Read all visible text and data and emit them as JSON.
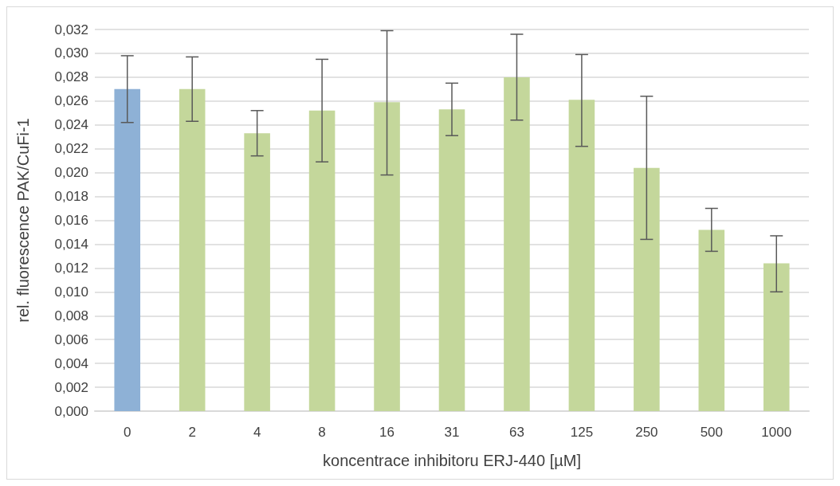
{
  "chart_data": {
    "type": "bar",
    "xlabel": "koncentrace inhibitoru ERJ-440 [µM]",
    "ylabel": "rel. fluorescence PAK/CuFi-1",
    "categories": [
      "0",
      "2",
      "4",
      "8",
      "16",
      "31",
      "63",
      "125",
      "250",
      "500",
      "1000"
    ],
    "values": [
      0.027,
      0.027,
      0.0233,
      0.0252,
      0.0259,
      0.0253,
      0.028,
      0.0261,
      0.0204,
      0.0152,
      0.0124
    ],
    "colors": [
      "#8eb1d6",
      "#c4d79b",
      "#c4d79b",
      "#c4d79b",
      "#c4d79b",
      "#c4d79b",
      "#c4d79b",
      "#c4d79b",
      "#c4d79b",
      "#c4d79b",
      "#c4d79b"
    ],
    "errors": [
      [
        0.0242,
        0.0298
      ],
      [
        0.0243,
        0.0297
      ],
      [
        0.0214,
        0.0252
      ],
      [
        0.0209,
        0.0295
      ],
      [
        0.0198,
        0.0319
      ],
      [
        0.0231,
        0.0275
      ],
      [
        0.0244,
        0.0316
      ],
      [
        0.0222,
        0.0299
      ],
      [
        0.0144,
        0.0264
      ],
      [
        0.0134,
        0.017
      ],
      [
        0.01,
        0.0147
      ]
    ],
    "ylim": [
      0,
      0.032
    ],
    "yticks": [
      {
        "value": 0,
        "label": "0,000"
      },
      {
        "value": 0.002,
        "label": "0,002"
      },
      {
        "value": 0.004,
        "label": "0,004"
      },
      {
        "value": 0.006,
        "label": "0,006"
      },
      {
        "value": 0.008,
        "label": "0,008"
      },
      {
        "value": 0.01,
        "label": "0,010"
      },
      {
        "value": 0.012,
        "label": "0,012"
      },
      {
        "value": 0.014,
        "label": "0,014"
      },
      {
        "value": 0.016,
        "label": "0,016"
      },
      {
        "value": 0.018,
        "label": "0,018"
      },
      {
        "value": 0.02,
        "label": "0,020"
      },
      {
        "value": 0.022,
        "label": "0,022"
      },
      {
        "value": 0.024,
        "label": "0,024"
      },
      {
        "value": 0.026,
        "label": "0,026"
      },
      {
        "value": 0.028,
        "label": "0,028"
      },
      {
        "value": 0.03,
        "label": "0,030"
      },
      {
        "value": 0.032,
        "label": "0,032"
      }
    ],
    "grid": "y"
  }
}
